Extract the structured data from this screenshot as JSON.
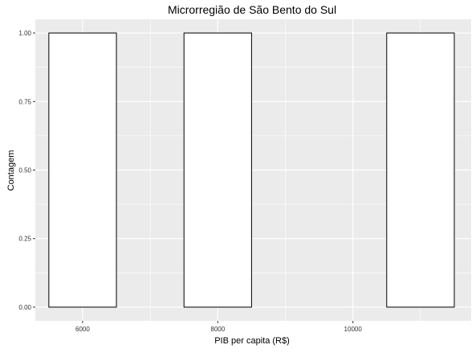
{
  "chart_data": {
    "type": "bar",
    "title": "Microrregião de  São Bento do Sul",
    "xlabel": "PIB per capita (R$)",
    "ylabel": "Contagem",
    "xlim": [
      5300,
      11750
    ],
    "ylim": [
      -0.05,
      1.05
    ],
    "x_ticks": [
      6000,
      8000,
      10000
    ],
    "x_tick_labels": [
      "6000",
      "8000",
      "10000"
    ],
    "y_ticks": [
      0,
      0.25,
      0.5,
      0.75,
      1
    ],
    "y_tick_labels": [
      "0.00",
      "0.25",
      "0.50",
      "0.75",
      "1.00"
    ],
    "bins": [
      {
        "x0": 5500,
        "x1": 6500,
        "count": 1
      },
      {
        "x0": 6500,
        "x1": 7500,
        "count": 0
      },
      {
        "x0": 7500,
        "x1": 8500,
        "count": 1
      },
      {
        "x0": 8500,
        "x1": 9500,
        "count": 0
      },
      {
        "x0": 9500,
        "x1": 10500,
        "count": 0
      },
      {
        "x0": 10500,
        "x1": 11500,
        "count": 1
      }
    ],
    "grid": true,
    "colors": {
      "panel": "#ebebeb",
      "grid": "#ffffff",
      "bar_fill": "#ffffff",
      "bar_stroke": "#000000",
      "text": "#000000",
      "tick_text": "#333333"
    }
  }
}
